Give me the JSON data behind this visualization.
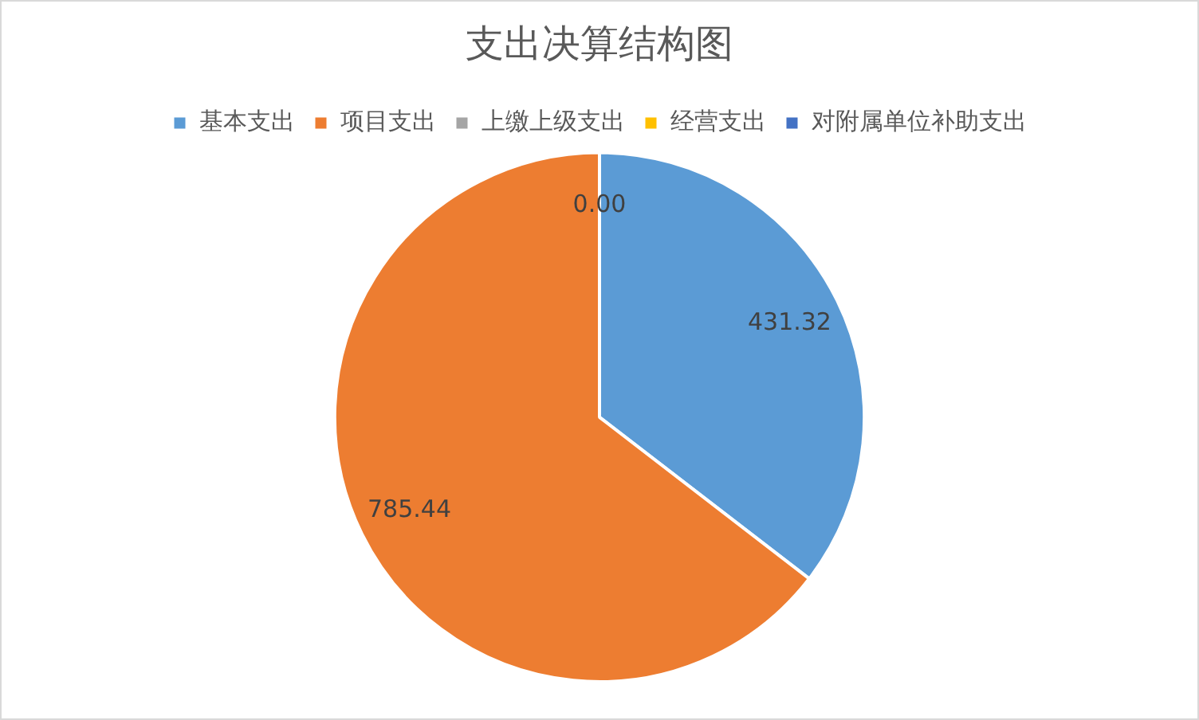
{
  "chart_data": {
    "type": "pie",
    "title": "支出决算结构图",
    "categories": [
      "基本支出",
      "项目支出",
      "上缴上级支出",
      "经营支出",
      "对附属单位补助支出"
    ],
    "values": [
      431.32,
      785.44,
      0,
      0,
      0
    ],
    "colors": [
      "#5b9bd5",
      "#ed7d31",
      "#a5a5a5",
      "#ffc000",
      "#4472c4"
    ],
    "value_labels": [
      "431.32",
      "785.44",
      "0.00",
      null,
      null
    ],
    "legend": "top"
  }
}
